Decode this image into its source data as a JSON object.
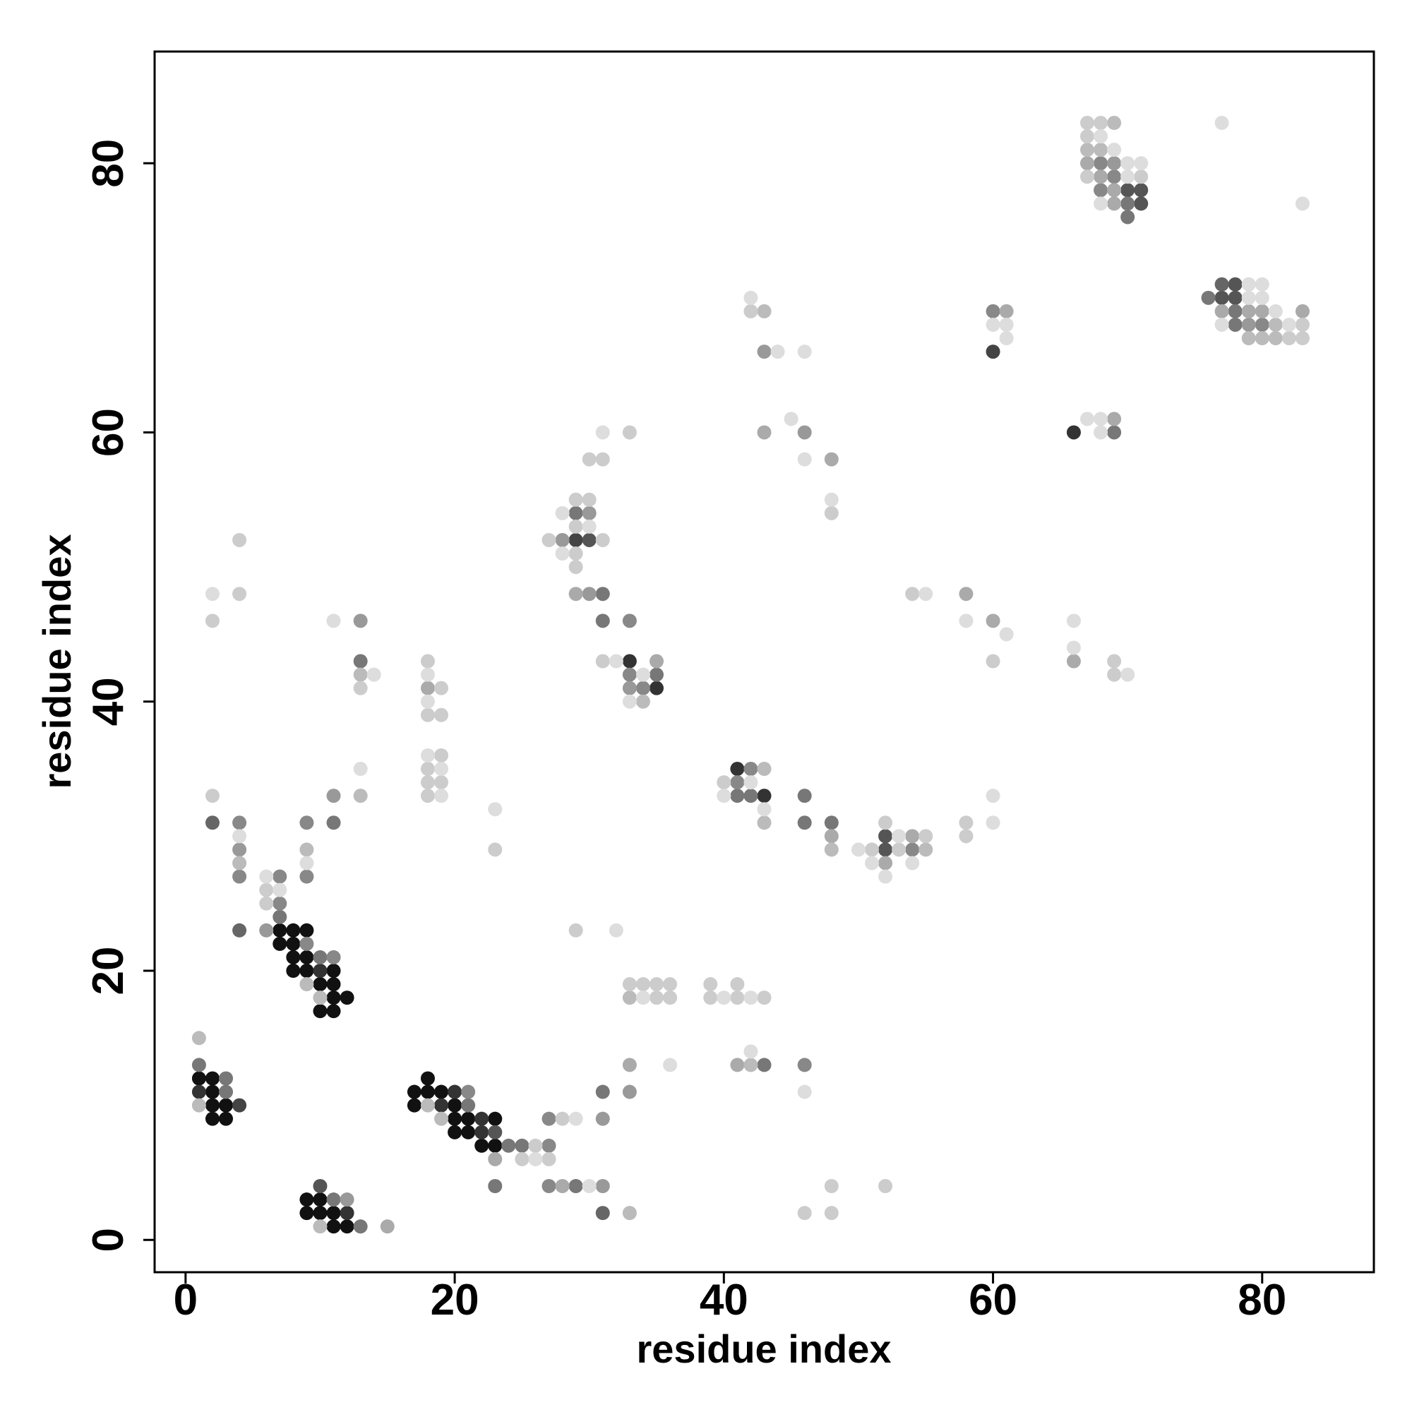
{
  "chart_data": {
    "type": "scatter",
    "xlabel": "residue index",
    "ylabel": "residue index",
    "xlim": [
      -2.3,
      88.3
    ],
    "ylim": [
      -2.4,
      88.3
    ],
    "xticks": [
      0,
      20,
      40,
      60,
      80
    ],
    "yticks": [
      0,
      20,
      40,
      60,
      80
    ],
    "series": [
      {
        "color": "#111111",
        "x": [
          1,
          2,
          2,
          2,
          3,
          2,
          3,
          9,
          10,
          9,
          10,
          11,
          11,
          12,
          18,
          17,
          18,
          19,
          17,
          20,
          20,
          21,
          23,
          20,
          21,
          22,
          23,
          7,
          8,
          9,
          7,
          8,
          8,
          9,
          8,
          9,
          11,
          10,
          11,
          11,
          12,
          10,
          11
        ],
        "values": [
          12,
          12,
          11,
          10,
          10,
          9,
          9,
          3,
          3,
          2,
          2,
          2,
          1,
          1,
          12,
          11,
          11,
          11,
          10,
          10,
          9,
          9,
          9,
          8,
          8,
          7,
          7,
          23,
          23,
          23,
          22,
          22,
          21,
          21,
          20,
          20,
          20,
          19,
          19,
          18,
          18,
          17,
          17
        ]
      },
      {
        "color": "#333333",
        "x": [
          1,
          12,
          20,
          19,
          22,
          22,
          10,
          33,
          35,
          41,
          43,
          66
        ],
        "values": [
          11,
          2,
          11,
          10,
          9,
          8,
          20,
          43,
          41,
          35,
          33,
          60
        ]
      },
      {
        "color": "#444444",
        "x": [
          4,
          29,
          60
        ],
        "values": [
          10,
          52,
          66
        ]
      },
      {
        "color": "#555555",
        "x": [
          10,
          23,
          30,
          52,
          52,
          70,
          71,
          71,
          78,
          77,
          78
        ],
        "values": [
          4,
          8,
          52,
          30,
          29,
          78,
          78,
          77,
          71,
          70,
          70
        ]
      },
      {
        "color": "#666666",
        "x": [
          31,
          4,
          2,
          77
        ],
        "values": [
          2,
          23,
          31,
          71
        ]
      },
      {
        "color": "#777777",
        "x": [
          1,
          3,
          3,
          11,
          21,
          24,
          25,
          31,
          43,
          23,
          29,
          7,
          10,
          13,
          11,
          13,
          29,
          31,
          31,
          35,
          41,
          42,
          46,
          46,
          48,
          69,
          70,
          70,
          76,
          78,
          78
        ],
        "values": [
          13,
          12,
          11,
          3,
          10,
          7,
          7,
          11,
          13,
          4,
          4,
          24,
          21,
          1,
          31,
          43,
          54,
          48,
          46,
          42,
          33,
          33,
          33,
          31,
          31,
          60,
          77,
          76,
          70,
          69,
          68
        ]
      },
      {
        "color": "#888888",
        "x": [
          21,
          27,
          27,
          46,
          27,
          7,
          7,
          9,
          11,
          4,
          4,
          9,
          9,
          33,
          33,
          34,
          41,
          42,
          54,
          60,
          68,
          69,
          68,
          80
        ],
        "values": [
          11,
          7,
          9,
          13,
          4,
          27,
          25,
          22,
          21,
          31,
          27,
          31,
          27,
          46,
          42,
          41,
          34,
          35,
          29,
          69,
          80,
          79,
          78,
          68
        ]
      },
      {
        "color": "#999999",
        "x": [
          12,
          31,
          33,
          31,
          6,
          4,
          11,
          13,
          28,
          30,
          33,
          30,
          43,
          46,
          79,
          69
        ],
        "values": [
          3,
          9,
          11,
          4,
          23,
          29,
          33,
          46,
          52,
          48,
          41,
          54,
          66,
          60,
          68,
          80
        ]
      },
      {
        "color": "#aaaaaa",
        "x": [
          15,
          23,
          33,
          28,
          41,
          18,
          29,
          35,
          48,
          54,
          52,
          43,
          48,
          58,
          60,
          61,
          69,
          66,
          67,
          68,
          69,
          69,
          77,
          79,
          80,
          83
        ],
        "values": [
          1,
          6,
          13,
          4,
          13,
          41,
          48,
          43,
          30,
          30,
          28,
          60,
          58,
          48,
          46,
          69,
          61,
          43,
          80,
          79,
          78,
          77,
          69,
          69,
          69,
          69
        ]
      },
      {
        "color": "#bbbbbb",
        "x": [
          1,
          1,
          10,
          18,
          19,
          10,
          9,
          33,
          33,
          42,
          4,
          9,
          13,
          13,
          34,
          43,
          43,
          48,
          55,
          43,
          69,
          67,
          68,
          81,
          79,
          80,
          81
        ],
        "values": [
          15,
          10,
          1,
          10,
          9,
          18,
          19,
          2,
          18,
          13,
          28,
          29,
          42,
          33,
          40,
          31,
          35,
          29,
          29,
          69,
          83,
          81,
          81,
          68,
          67,
          67,
          67
        ]
      },
      {
        "color": "#cccccc",
        "x": [
          26,
          25,
          27,
          28,
          46,
          48,
          48,
          52,
          33,
          34,
          35,
          36,
          35,
          36,
          39,
          41,
          39,
          41,
          43,
          29,
          6,
          6,
          2,
          2,
          4,
          4,
          13,
          18,
          18,
          19,
          19,
          19,
          18,
          18,
          19,
          18,
          23,
          33,
          30,
          31,
          29,
          30,
          29,
          27,
          31,
          29,
          29,
          31,
          40,
          51,
          52,
          55,
          53,
          58,
          58,
          48,
          54,
          42,
          60,
          69,
          69,
          67,
          68,
          67,
          71,
          67,
          83,
          82,
          83
        ],
        "values": [
          7,
          6,
          6,
          9,
          2,
          2,
          4,
          4,
          19,
          19,
          19,
          19,
          18,
          18,
          19,
          19,
          18,
          18,
          18,
          23,
          26,
          25,
          33,
          46,
          52,
          48,
          41,
          43,
          39,
          39,
          41,
          36,
          35,
          34,
          34,
          33,
          29,
          60,
          58,
          58,
          55,
          55,
          53,
          52,
          52,
          51,
          50,
          43,
          34,
          29,
          31,
          30,
          29,
          31,
          30,
          54,
          48,
          69,
          43,
          43,
          42,
          83,
          83,
          82,
          79,
          79,
          68,
          67,
          67
        ]
      },
      {
        "color": "#dddddd",
        "x": [
          26,
          29,
          30,
          36,
          46,
          42,
          34,
          40,
          42,
          32,
          6,
          7,
          4,
          9,
          13,
          2,
          11,
          14,
          18,
          18,
          18,
          19,
          19,
          23,
          31,
          28,
          30,
          28,
          32,
          34,
          33,
          42,
          40,
          43,
          50,
          51,
          53,
          54,
          52,
          60,
          60,
          42,
          44,
          46,
          45,
          46,
          48,
          55,
          58,
          61,
          60,
          61,
          61,
          67,
          68,
          68,
          66,
          66,
          70,
          68,
          69,
          70,
          71,
          70,
          68,
          77,
          83,
          79,
          80,
          79,
          80,
          81,
          77,
          82
        ],
        "values": [
          6,
          9,
          4,
          13,
          11,
          14,
          18,
          18,
          18,
          23,
          27,
          26,
          30,
          28,
          35,
          48,
          46,
          42,
          42,
          40,
          36,
          35,
          33,
          32,
          60,
          54,
          53,
          51,
          43,
          42,
          40,
          34,
          33,
          32,
          29,
          28,
          30,
          28,
          27,
          33,
          31,
          70,
          66,
          66,
          61,
          58,
          55,
          48,
          46,
          45,
          68,
          68,
          67,
          61,
          61,
          60,
          46,
          44,
          42,
          82,
          81,
          80,
          80,
          79,
          77,
          83,
          77,
          71,
          71,
          70,
          70,
          69,
          68,
          68
        ]
      }
    ]
  }
}
